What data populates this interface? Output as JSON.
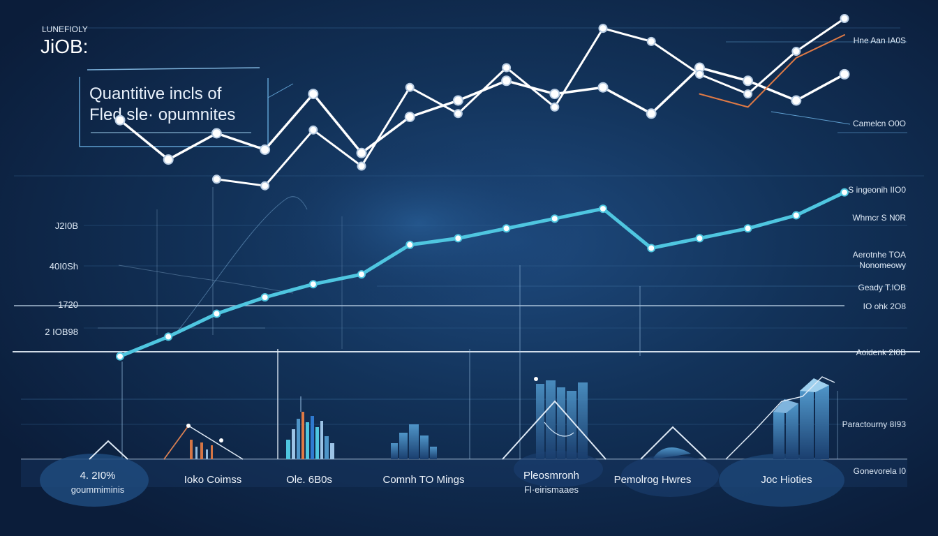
{
  "brand": {
    "kicker": "LUNEFIOLY",
    "name": "JiOB:"
  },
  "headline": {
    "line1": "Quantitive incls of",
    "line2": "Fled sle· opumnites"
  },
  "left_ticks": [
    "J2I0B",
    "40I0Sh",
    "1720",
    "2 IOB98"
  ],
  "right_labels": [
    "Hne Aan IA0S",
    "Camelcn O0O",
    "S ingeonih IIO0",
    "Whmcr S N0R",
    "Aerotnhe TOA",
    "Nonomeowy",
    "Geady T.IOB",
    "IO ohk 2O8",
    "Aoidenk 2I0B",
    "Paractourny 8I93",
    "Gonevorela I0"
  ],
  "bottom_labels": [
    {
      "line1": "4. 2I0%",
      "line2": "goummiminis"
    },
    {
      "line1": "Ioko Coimss",
      "line2": ""
    },
    {
      "line1": "Ole. 6B0s",
      "line2": ""
    },
    {
      "line1": "Comnh TO Mings",
      "line2": ""
    },
    {
      "line1": "Pleosmronh",
      "line2": "Fl·eirismaaes"
    },
    {
      "line1": "Pemolrog Hwres",
      "line2": ""
    },
    {
      "line1": "Joc Hioties",
      "line2": ""
    }
  ],
  "colors": {
    "background": "#0d2142",
    "white_series": "#ffffff",
    "cyan_series": "#4fc6e0",
    "orange_series": "#e07a45",
    "grid": "#3c6fa0"
  },
  "chart_data": {
    "type": "line",
    "title": "Quantitive incls of Fled sle· opumnites",
    "x": [
      0,
      1,
      2,
      3,
      4,
      5,
      6,
      7,
      8,
      9,
      10,
      11,
      12,
      13,
      14,
      15
    ],
    "xlim": [
      0,
      15
    ],
    "ylim": [
      0,
      100
    ],
    "grid": true,
    "series": [
      {
        "values": [
          74,
          62,
          70,
          65,
          82,
          64,
          75,
          80,
          86,
          82,
          84,
          76,
          90,
          86,
          80,
          88
        ]
      },
      {
        "values": [
          null,
          null,
          56,
          54,
          71,
          60,
          84,
          76,
          90,
          78,
          102,
          98,
          88,
          82,
          95,
          105
        ]
      },
      {
        "values": [
          2,
          8,
          15,
          20,
          24,
          27,
          36,
          38,
          41,
          44,
          47,
          35,
          38,
          41,
          45,
          52
        ]
      },
      {
        "values": [
          null,
          null,
          null,
          null,
          null,
          null,
          null,
          null,
          null,
          null,
          null,
          null,
          82,
          78,
          93,
          100
        ]
      }
    ]
  }
}
